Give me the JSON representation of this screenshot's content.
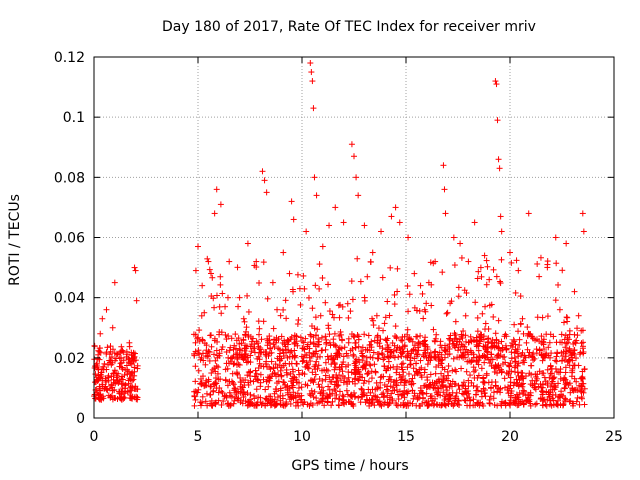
{
  "chart_data": {
    "type": "scatter",
    "title": "Day 180 of 2017, Rate Of TEC Index for receiver mriv",
    "xlabel": "GPS time / hours",
    "ylabel": "ROTI / TECUs",
    "xlim": [
      0,
      25
    ],
    "ylim": [
      0,
      0.12
    ],
    "xticks": [
      0,
      5,
      10,
      15,
      20,
      25
    ],
    "xtick_labels": [
      "0",
      "5",
      "10",
      "15",
      "20",
      "25"
    ],
    "yticks": [
      0,
      0.02,
      0.04,
      0.06,
      0.08,
      0.1,
      0.12
    ],
    "ytick_labels": [
      "0",
      "0.02",
      "0.04",
      "0.06",
      "0.08",
      "0.1",
      "0.12"
    ],
    "grid": true,
    "marker": "+",
    "color": "#ff0000",
    "data_gap_hours": [
      2.1,
      4.8
    ],
    "series": [
      {
        "name": "ROTI",
        "points": [
          [
            0.1,
            0.012
          ],
          [
            0.2,
            0.021
          ],
          [
            0.3,
            0.028
          ],
          [
            0.4,
            0.033
          ],
          [
            0.5,
            0.018
          ],
          [
            0.6,
            0.036
          ],
          [
            0.7,
            0.014
          ],
          [
            0.8,
            0.022
          ],
          [
            0.9,
            0.03
          ],
          [
            1.0,
            0.045
          ],
          [
            1.1,
            0.012
          ],
          [
            1.3,
            0.02
          ],
          [
            1.5,
            0.016
          ],
          [
            1.7,
            0.025
          ],
          [
            1.9,
            0.019
          ],
          [
            1.95,
            0.05
          ],
          [
            2.0,
            0.049
          ],
          [
            2.05,
            0.039
          ],
          [
            4.9,
            0.049
          ],
          [
            5.0,
            0.057
          ],
          [
            5.2,
            0.044
          ],
          [
            5.5,
            0.052
          ],
          [
            5.8,
            0.068
          ],
          [
            5.9,
            0.076
          ],
          [
            6.1,
            0.071
          ],
          [
            6.5,
            0.052
          ],
          [
            7.0,
            0.04
          ],
          [
            7.4,
            0.058
          ],
          [
            7.8,
            0.052
          ],
          [
            8.1,
            0.082
          ],
          [
            8.2,
            0.079
          ],
          [
            8.3,
            0.075
          ],
          [
            8.6,
            0.045
          ],
          [
            9.1,
            0.055
          ],
          [
            9.4,
            0.048
          ],
          [
            9.5,
            0.072
          ],
          [
            9.6,
            0.066
          ],
          [
            9.9,
            0.043
          ],
          [
            10.2,
            0.062
          ],
          [
            10.4,
            0.118
          ],
          [
            10.45,
            0.115
          ],
          [
            10.5,
            0.112
          ],
          [
            10.55,
            0.103
          ],
          [
            10.6,
            0.08
          ],
          [
            10.7,
            0.074
          ],
          [
            11.0,
            0.057
          ],
          [
            11.3,
            0.064
          ],
          [
            11.6,
            0.07
          ],
          [
            12.0,
            0.065
          ],
          [
            12.4,
            0.091
          ],
          [
            12.5,
            0.087
          ],
          [
            12.6,
            0.08
          ],
          [
            12.7,
            0.074
          ],
          [
            13.0,
            0.064
          ],
          [
            13.4,
            0.055
          ],
          [
            13.8,
            0.062
          ],
          [
            14.3,
            0.067
          ],
          [
            14.5,
            0.07
          ],
          [
            14.7,
            0.065
          ],
          [
            15.1,
            0.06
          ],
          [
            15.4,
            0.048
          ],
          [
            15.7,
            0.044
          ],
          [
            16.1,
            0.045
          ],
          [
            16.4,
            0.052
          ],
          [
            16.8,
            0.084
          ],
          [
            16.85,
            0.076
          ],
          [
            16.9,
            0.068
          ],
          [
            17.3,
            0.06
          ],
          [
            17.6,
            0.058
          ],
          [
            18.0,
            0.052
          ],
          [
            18.3,
            0.065
          ],
          [
            18.6,
            0.05
          ],
          [
            19.0,
            0.046
          ],
          [
            19.3,
            0.112
          ],
          [
            19.35,
            0.111
          ],
          [
            19.4,
            0.099
          ],
          [
            19.45,
            0.086
          ],
          [
            19.5,
            0.083
          ],
          [
            19.55,
            0.067
          ],
          [
            19.6,
            0.062
          ],
          [
            20.0,
            0.055
          ],
          [
            20.4,
            0.049
          ],
          [
            20.9,
            0.068
          ],
          [
            21.4,
            0.047
          ],
          [
            21.8,
            0.051
          ],
          [
            22.2,
            0.06
          ],
          [
            22.7,
            0.058
          ],
          [
            23.1,
            0.042
          ],
          [
            23.5,
            0.068
          ],
          [
            23.55,
            0.062
          ],
          [
            5.3,
            0.035
          ],
          [
            6.3,
            0.037
          ],
          [
            7.2,
            0.033
          ],
          [
            8.8,
            0.036
          ],
          [
            10.9,
            0.034
          ],
          [
            12.2,
            0.038
          ],
          [
            13.6,
            0.034
          ],
          [
            15.9,
            0.036
          ],
          [
            17.0,
            0.035
          ],
          [
            18.8,
            0.037
          ],
          [
            20.6,
            0.033
          ],
          [
            22.4,
            0.036
          ],
          [
            23.3,
            0.034
          ]
        ]
      }
    ]
  }
}
